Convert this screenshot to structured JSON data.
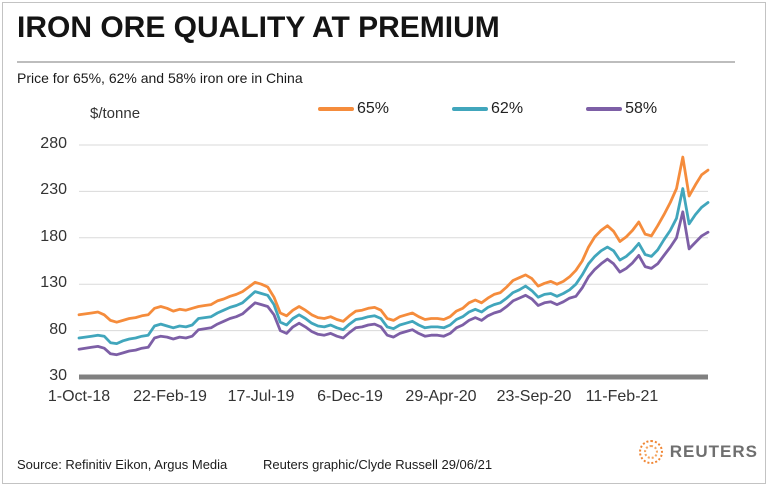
{
  "header": {
    "title": "IRON ORE QUALITY AT PREMIUM",
    "subtitle": "Price for 65%, 62% and 58% iron ore in China"
  },
  "footer": {
    "source": "Source: Refinitiv Eikon,  Argus Media",
    "credit": "Reuters graphic/Clyde Russell 29/06/21",
    "logo_text": "REUTERS",
    "logo_color": "#F08532",
    "logo_text_color": "#6F6F6F"
  },
  "chart_data": {
    "type": "line",
    "title": "IRON ORE QUALITY AT PREMIUM",
    "subtitle": "Price for 65%, 62% and 58% iron ore in China",
    "unit_label": "$/tonne",
    "ylabel": "$/tonne",
    "xlabel": "",
    "ylim": [
      30,
      280
    ],
    "y_ticks": [
      280,
      230,
      180,
      130,
      80,
      30
    ],
    "grid": "horizontal",
    "grid_color": "#DADADA",
    "baseline_color": "#808080",
    "legend_position": "top",
    "x_tick_labels": [
      "1-Oct-18",
      "22-Feb-19",
      "17-Jul-19",
      "6-Dec-19",
      "29-Apr-20",
      "23-Sep-20",
      "11-Feb-21"
    ],
    "x_tick_days": [
      0,
      144,
      289,
      431,
      576,
      723,
      864
    ],
    "x_step_days": 10,
    "x_total_days": 1000,
    "x_note": "values sampled every 10 days from 1-Oct-18 to 27-Jun-21",
    "series": [
      {
        "name": "65%",
        "color": "#F58C3C",
        "values": [
          97,
          98,
          99,
          100,
          97,
          91,
          89,
          91,
          93,
          94,
          96,
          97,
          104,
          106,
          104,
          101,
          103,
          102,
          104,
          106,
          107,
          108,
          112,
          114,
          117,
          119,
          122,
          127,
          132,
          130,
          127,
          116,
          99,
          96,
          102,
          106,
          102,
          97,
          94,
          93,
          95,
          92,
          90,
          96,
          101,
          102,
          104,
          105,
          102,
          93,
          91,
          95,
          97,
          99,
          95,
          92,
          93,
          93,
          92,
          95,
          101,
          104,
          110,
          113,
          110,
          115,
          119,
          121,
          127,
          134,
          137,
          140,
          136,
          128,
          131,
          133,
          130,
          133,
          138,
          145,
          155,
          170,
          181,
          188,
          193,
          187,
          176,
          181,
          188,
          197,
          184,
          182,
          193,
          205,
          218,
          233,
          267,
          225,
          237,
          248,
          253
        ]
      },
      {
        "name": "62%",
        "color": "#41A6BC",
        "values": [
          72,
          73,
          74,
          75,
          74,
          67,
          66,
          69,
          71,
          72,
          74,
          75,
          85,
          87,
          85,
          83,
          85,
          84,
          86,
          93,
          94,
          95,
          99,
          102,
          105,
          107,
          110,
          116,
          122,
          120,
          118,
          108,
          89,
          86,
          93,
          97,
          93,
          88,
          85,
          84,
          86,
          83,
          81,
          87,
          92,
          93,
          95,
          96,
          93,
          84,
          82,
          86,
          88,
          90,
          86,
          83,
          84,
          84,
          83,
          86,
          92,
          95,
          100,
          103,
          100,
          105,
          108,
          110,
          115,
          121,
          124,
          128,
          123,
          116,
          119,
          120,
          117,
          120,
          124,
          130,
          140,
          152,
          160,
          166,
          170,
          166,
          156,
          160,
          166,
          174,
          162,
          160,
          167,
          178,
          188,
          201,
          233,
          195,
          205,
          213,
          218
        ]
      },
      {
        "name": "58%",
        "color": "#7D5FA6",
        "values": [
          60,
          61,
          62,
          63,
          61,
          55,
          54,
          56,
          58,
          59,
          61,
          62,
          72,
          74,
          73,
          71,
          73,
          72,
          74,
          81,
          82,
          83,
          87,
          90,
          93,
          95,
          98,
          104,
          110,
          108,
          106,
          97,
          80,
          77,
          84,
          88,
          84,
          79,
          76,
          75,
          77,
          74,
          72,
          78,
          83,
          84,
          86,
          87,
          84,
          75,
          73,
          77,
          79,
          81,
          77,
          74,
          75,
          75,
          74,
          77,
          83,
          86,
          91,
          94,
          91,
          96,
          99,
          101,
          106,
          112,
          115,
          118,
          114,
          107,
          110,
          111,
          108,
          111,
          115,
          117,
          126,
          138,
          146,
          152,
          157,
          152,
          143,
          147,
          153,
          161,
          149,
          147,
          152,
          161,
          170,
          180,
          208,
          168,
          175,
          182,
          186
        ]
      }
    ]
  }
}
